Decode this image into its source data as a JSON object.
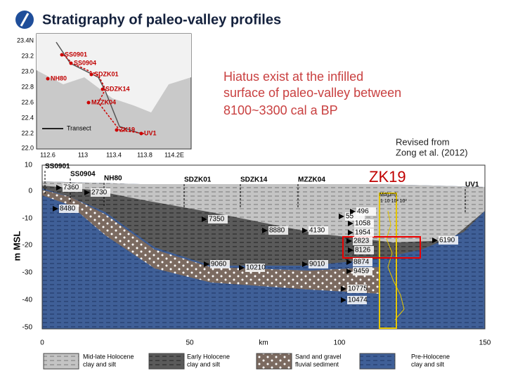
{
  "header": {
    "title": "Stratigraphy of paleo-valley profiles"
  },
  "note": {
    "lines": [
      "Hiatus exist at the  infilled",
      "surface of paleo-valley between",
      "8100~3300 cal a BP"
    ]
  },
  "credit": {
    "lines": [
      "Revised from",
      "Zong et al. (2012)"
    ]
  },
  "highlight": "ZK19",
  "map": {
    "lat_labels": [
      "23.4N",
      "23.2",
      "23.0",
      "22.8",
      "22.6",
      "22.4",
      "22.2",
      "22.0"
    ],
    "lon_labels": [
      "112.6",
      "113",
      "113.4",
      "113.8",
      "114.2E"
    ],
    "sites": [
      "SS0901",
      "SS0904",
      "NH80",
      "SDZK01",
      "SDZK14",
      "MZZK04",
      "ZK19",
      "UV1"
    ],
    "legend": "Transect"
  },
  "section": {
    "sites": [
      "SS0901",
      "SS0904",
      "NH80",
      "SDZK01",
      "SDZK14",
      "MZZK04",
      "UV1"
    ],
    "y_labels": [
      "10",
      "0",
      "-10",
      "-20",
      "-30",
      "-40",
      "-50"
    ],
    "y_title": "m MSL",
    "x_labels": [
      "0",
      "50",
      "100",
      "150"
    ],
    "x_title": "km",
    "inset_title": "Md(μm)",
    "inset_scale": "1  10  10²  10³",
    "ages": [
      "7360",
      "2730",
      "8480",
      "7350",
      "8880",
      "4130",
      "55",
      "496",
      "1058",
      "1954",
      "2823",
      "8126",
      "6190",
      "9060",
      "10210",
      "9010",
      "8874",
      "9459",
      "10775",
      "10474"
    ]
  },
  "legend": [
    {
      "line1": "Mid-late Holocene",
      "line2": "clay and silt"
    },
    {
      "line1": "Early Holocene",
      "line2": "clay and silt"
    },
    {
      "line1": "Sand and gravel",
      "line2": "fluvial sediment"
    },
    {
      "line1": "Pre-Holocene",
      "line2": "clay and silt"
    }
  ]
}
